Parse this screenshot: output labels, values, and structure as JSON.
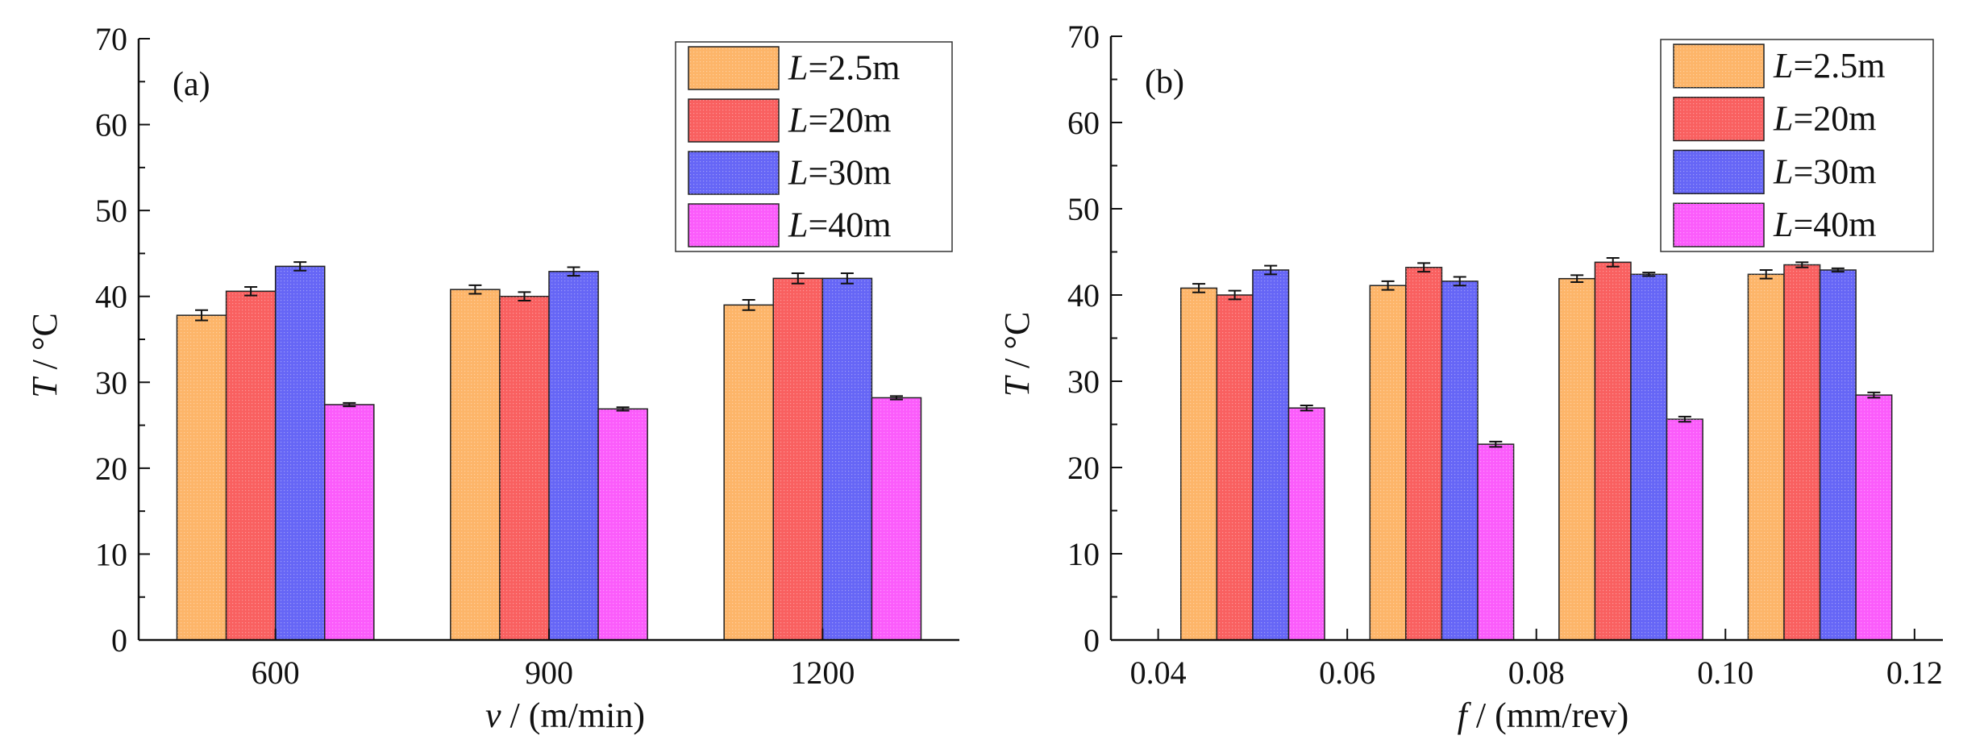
{
  "chart_data": [
    {
      "type": "bar",
      "panel_label": "(a)",
      "title": "",
      "xlabel": "(m/min)",
      "xlabel_symbol": "v",
      "ylabel_symbol": "T",
      "ylabel_unit": "°C",
      "ylim": [
        0,
        70
      ],
      "yticks": [
        0,
        10,
        20,
        30,
        40,
        50,
        60,
        70
      ],
      "categories": [
        "600",
        "900",
        "1200"
      ],
      "legend_position": "top-right",
      "series": [
        {
          "name": "L=2.5m",
          "symbol": "L",
          "suffix": "=2.5m",
          "color": "#fdb569",
          "values": [
            37.8,
            40.8,
            39.0
          ],
          "errors": [
            0.6,
            0.5,
            0.6
          ]
        },
        {
          "name": "L=20m",
          "symbol": "L",
          "suffix": "=20m",
          "color": "#f96060",
          "values": [
            40.6,
            40.0,
            42.1
          ],
          "errors": [
            0.5,
            0.5,
            0.6
          ]
        },
        {
          "name": "L=30m",
          "symbol": "L",
          "suffix": "=30m",
          "color": "#6666f6",
          "values": [
            43.5,
            42.9,
            42.1
          ],
          "errors": [
            0.5,
            0.5,
            0.6
          ]
        },
        {
          "name": "L=40m",
          "symbol": "L",
          "suffix": "=40m",
          "color": "#fb5cfb",
          "values": [
            27.4,
            26.9,
            28.2
          ],
          "errors": [
            0.2,
            0.2,
            0.2
          ]
        }
      ]
    },
    {
      "type": "bar",
      "panel_label": "(b)",
      "title": "",
      "xlabel": "(mm/rev)",
      "xlabel_symbol": "f",
      "ylabel_symbol": "T",
      "ylabel_unit": "°C",
      "ylim": [
        0,
        70
      ],
      "yticks": [
        0,
        10,
        20,
        30,
        40,
        50,
        60,
        70
      ],
      "xlim": [
        0.035,
        0.123
      ],
      "xticks": [
        "0.04",
        "0.06",
        "0.08",
        "0.10",
        "0.12"
      ],
      "groups": [
        0.05,
        0.07,
        0.09,
        0.11
      ],
      "legend_position": "top-right",
      "series": [
        {
          "name": "L=2.5m",
          "symbol": "L",
          "suffix": "=2.5m",
          "color": "#fdb569",
          "values": [
            40.8,
            41.1,
            41.9,
            42.4
          ],
          "errors": [
            0.5,
            0.5,
            0.4,
            0.5
          ]
        },
        {
          "name": "L=20m",
          "symbol": "L",
          "suffix": "=20m",
          "color": "#f96060",
          "values": [
            40.0,
            43.2,
            43.8,
            43.5
          ],
          "errors": [
            0.5,
            0.5,
            0.5,
            0.3
          ]
        },
        {
          "name": "L=30m",
          "symbol": "L",
          "suffix": "=30m",
          "color": "#6666f6",
          "values": [
            42.9,
            41.6,
            42.4,
            42.9
          ],
          "errors": [
            0.5,
            0.5,
            0.2,
            0.2
          ]
        },
        {
          "name": "L=40m",
          "symbol": "L",
          "suffix": "=40m",
          "color": "#fb5cfb",
          "values": [
            26.9,
            22.7,
            25.6,
            28.4
          ],
          "errors": [
            0.3,
            0.3,
            0.3,
            0.3
          ]
        }
      ]
    }
  ]
}
